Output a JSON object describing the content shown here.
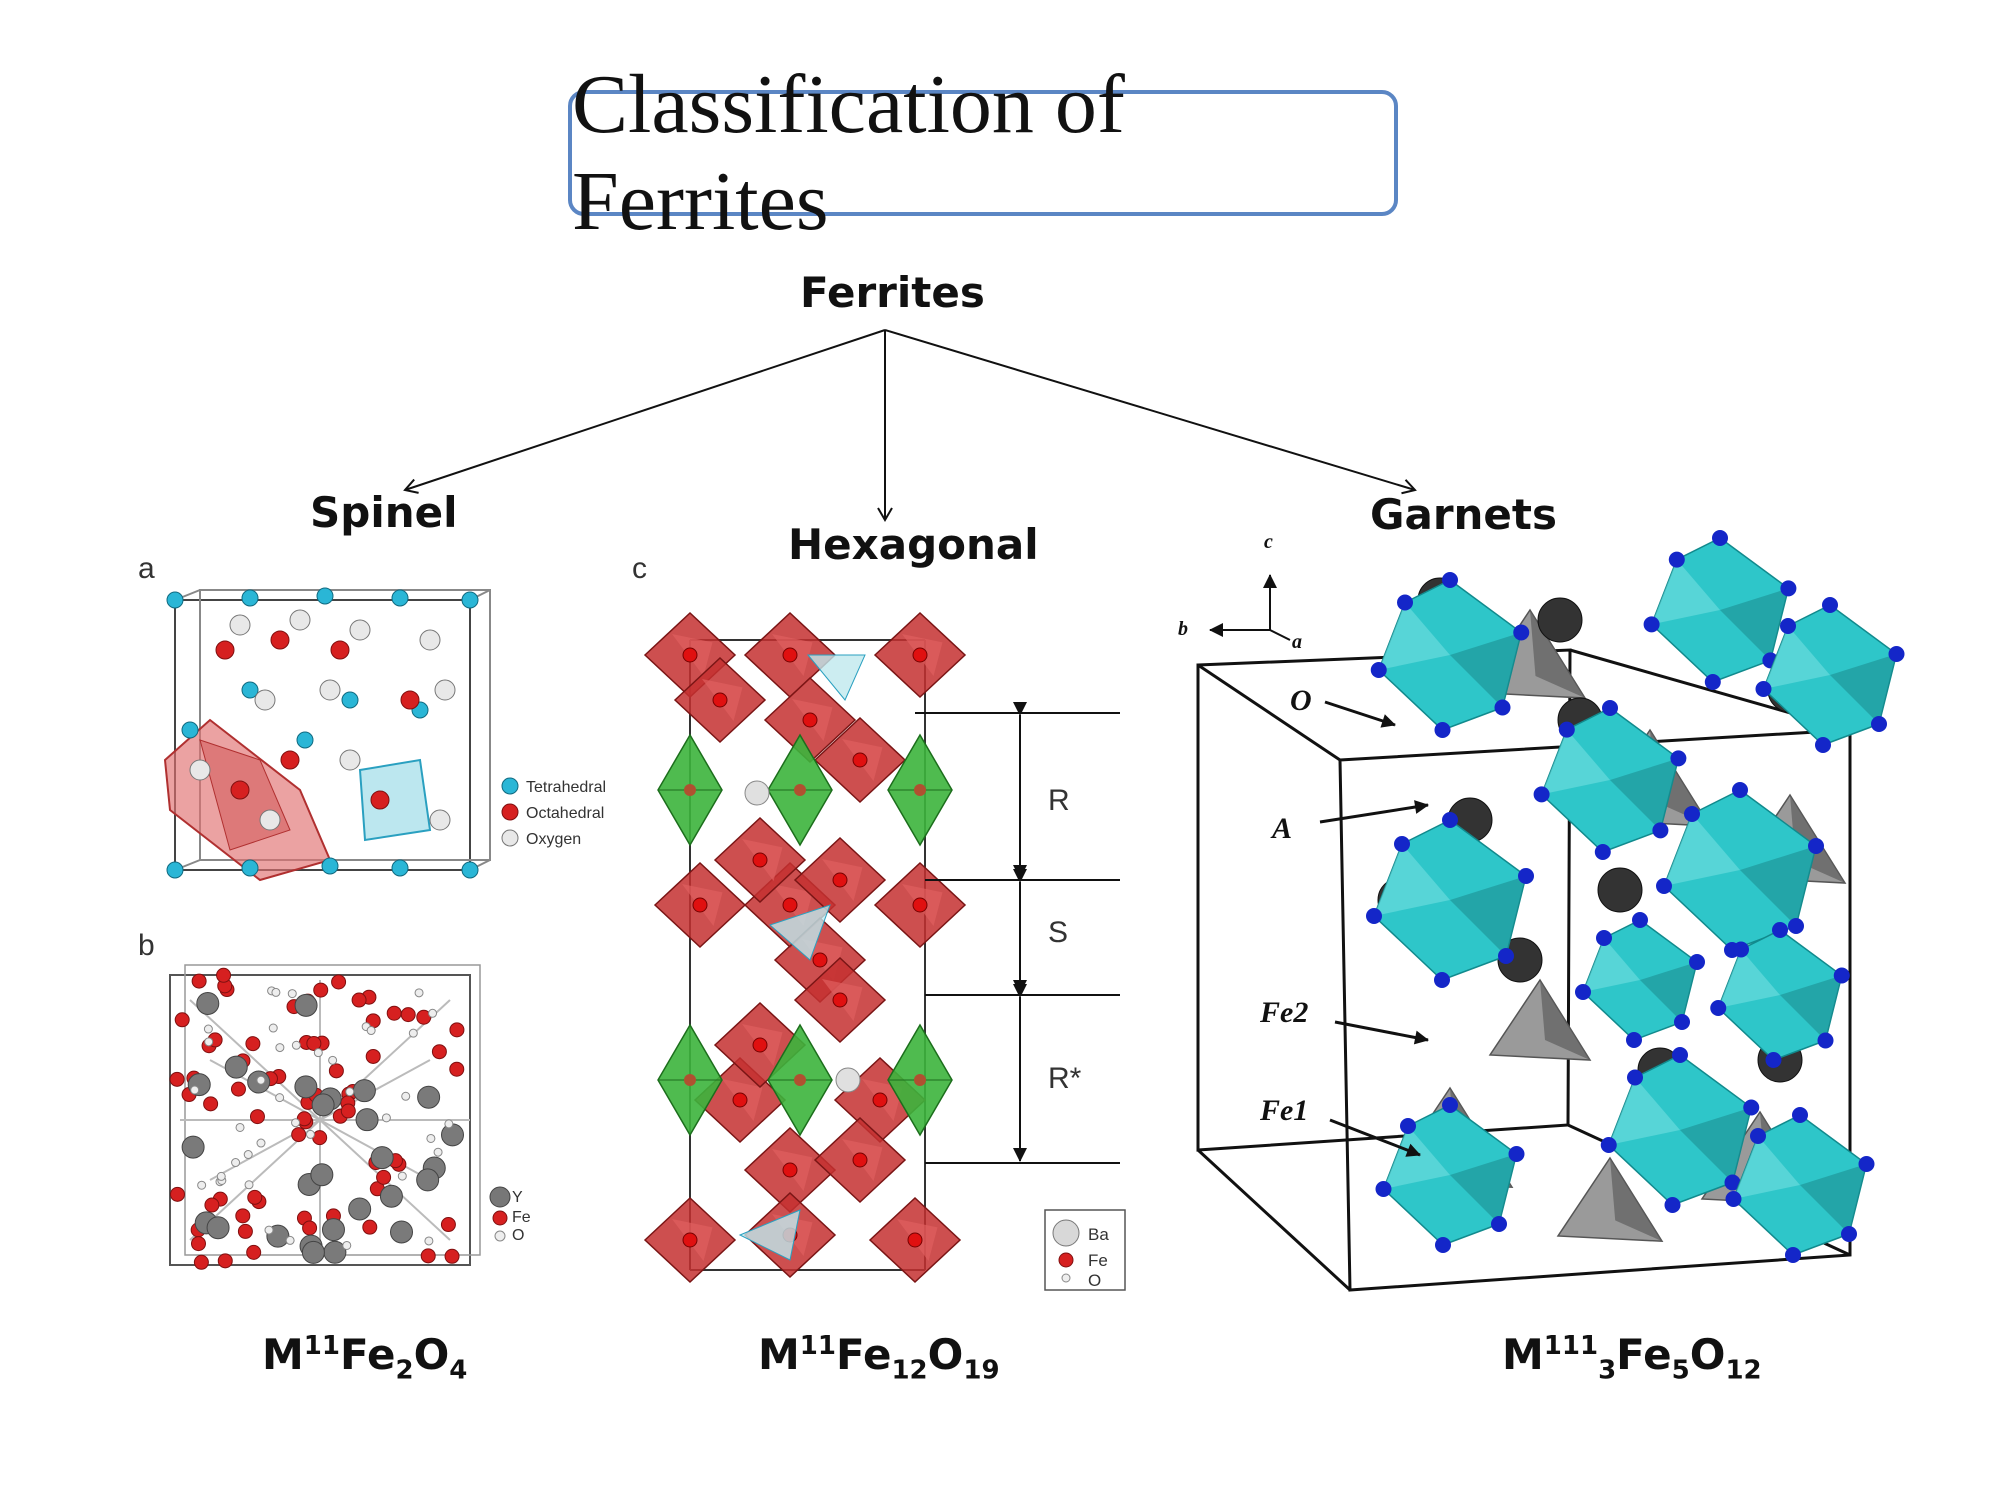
{
  "title": "Classification of Ferrites",
  "tree": {
    "root": "Ferrites",
    "children": [
      "Spinel",
      "Hexagonal",
      "Garnets"
    ]
  },
  "spinel_panel": {
    "panel_a_letter": "a",
    "panel_b_letter": "b",
    "legend_a": [
      "Tetrahedral",
      "Octahedral",
      "Oxygen"
    ],
    "legend_b": [
      "Y",
      "Fe",
      "O"
    ],
    "colors": {
      "tetrahedral": "#2ab6d6",
      "octahedral": "#d62020",
      "oxygen": "#dddddd"
    }
  },
  "hexagonal_panel": {
    "panel_letter": "c",
    "blocks": [
      "R",
      "S",
      "R*"
    ],
    "legend": [
      "Ba",
      "Fe",
      "O"
    ],
    "colors": {
      "octahedra": "#c43030",
      "bipyramid": "#3cb43c"
    }
  },
  "garnet_panel": {
    "axes": [
      "c",
      "b",
      "a"
    ],
    "site_labels": [
      "O",
      "A",
      "Fe2",
      "Fe1"
    ],
    "colors": {
      "fe1": "#2ec6c9",
      "fe2": "#9a9a9a",
      "a_site": "#333333",
      "oxygen": "#1426c8"
    }
  },
  "formulas": {
    "spinel": {
      "m": "M",
      "ox": "11",
      "fe": "Fe",
      "fe_n": "2",
      "o": "O",
      "o_n": "4"
    },
    "hexagonal": {
      "m": "M",
      "ox": "11",
      "fe": "Fe",
      "fe_n": "12",
      "o": "O",
      "o_n": "19"
    },
    "garnet": {
      "m": "M",
      "ox": "111",
      "m_n": "3",
      "fe": "Fe",
      "fe_n": "5",
      "o": "O",
      "o_n": "12"
    }
  }
}
